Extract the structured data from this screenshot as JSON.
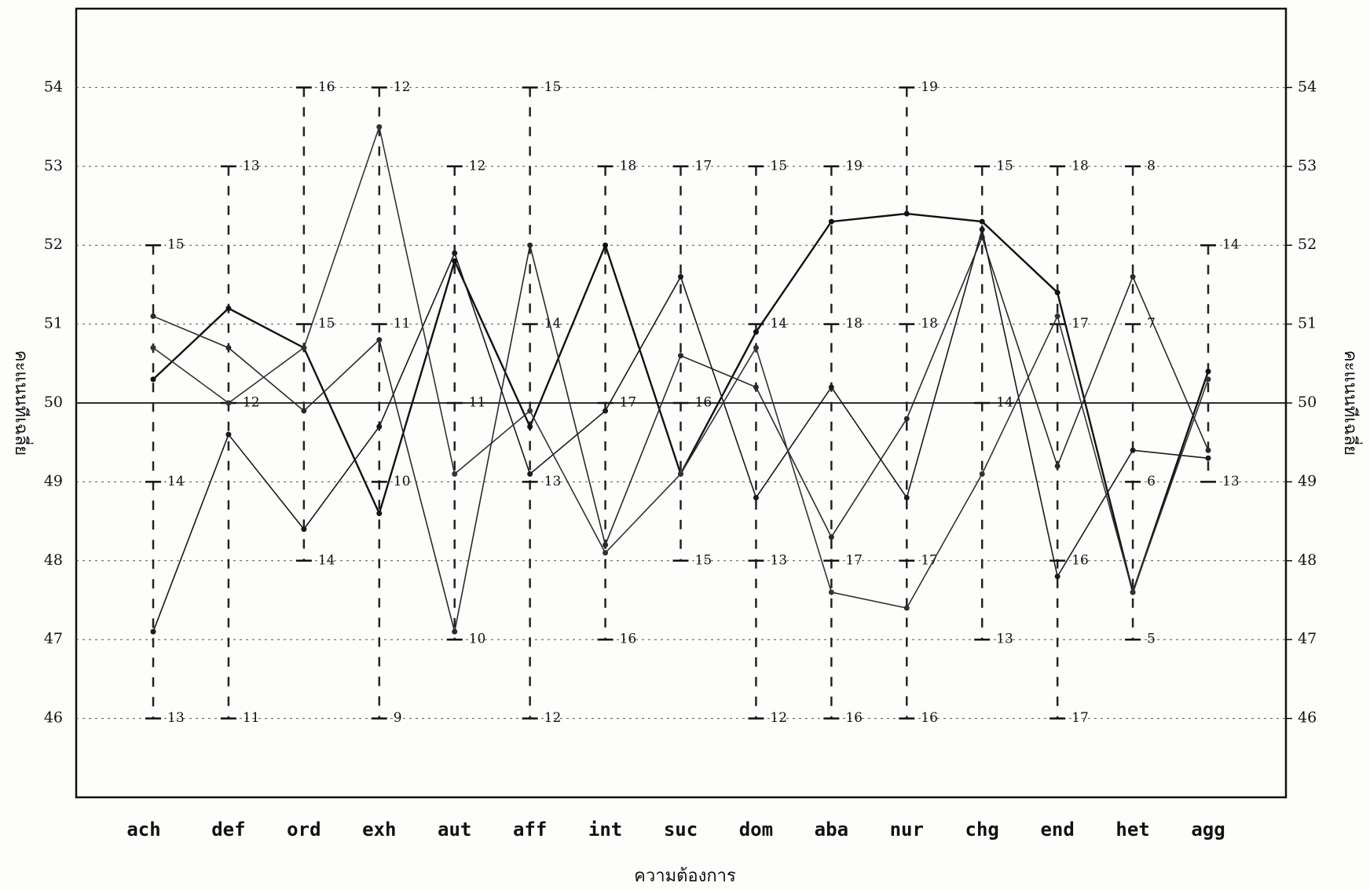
{
  "chart_data": {
    "type": "line",
    "xlabel": "ความต้องการ",
    "ylabel": "คะแนนทีเฉลี่ย",
    "y2label": "คะแนนทีเฉลี่ย",
    "categories": [
      "ach",
      "def",
      "ord",
      "exh",
      "aut",
      "aff",
      "int",
      "suc",
      "dom",
      "aba",
      "nur",
      "chg",
      "end",
      "het",
      "agg"
    ],
    "series": [
      {
        "color": "#111111",
        "values": [
          50.3,
          51.2,
          50.7,
          48.6,
          51.8,
          49.7,
          52.0,
          49.1,
          50.9,
          52.3,
          52.4,
          52.3,
          51.4,
          47.6,
          50.4
        ]
      },
      {
        "color": "#2a2a2a",
        "values": [
          51.1,
          50.7,
          49.9,
          50.8,
          47.1,
          52.0,
          48.2,
          50.6,
          50.2,
          48.3,
          49.8,
          52.1,
          49.2,
          51.6,
          49.4
        ]
      },
      {
        "color": "#1a1a1a",
        "values": [
          47.1,
          49.6,
          48.4,
          49.7,
          51.9,
          49.1,
          49.9,
          51.6,
          48.8,
          50.2,
          48.8,
          52.2,
          47.8,
          49.4,
          49.3
        ]
      },
      {
        "color": "#333333",
        "values": [
          50.7,
          50.0,
          50.7,
          53.5,
          49.1,
          49.9,
          48.1,
          49.1,
          50.7,
          47.6,
          47.4,
          49.1,
          51.1,
          47.6,
          50.3
        ]
      }
    ],
    "ylim": [
      45,
      55
    ],
    "yticks": [
      46,
      47,
      48,
      49,
      50,
      51,
      52,
      53,
      54
    ],
    "y2lim": [
      45,
      55
    ],
    "y2ticks": [
      46,
      47,
      48,
      49,
      50,
      51,
      52,
      53,
      54
    ],
    "reference_line": 50,
    "grid": true,
    "annotations": [
      {
        "x": "ach",
        "y": 52,
        "text": "15"
      },
      {
        "x": "ach",
        "y": 49,
        "text": "14"
      },
      {
        "x": "ach",
        "y": 46,
        "text": "13"
      },
      {
        "x": "def",
        "y": 53,
        "text": "13"
      },
      {
        "x": "def",
        "y": 50,
        "text": "12"
      },
      {
        "x": "def",
        "y": 46,
        "text": "11"
      },
      {
        "x": "ord",
        "y": 54,
        "text": "16"
      },
      {
        "x": "ord",
        "y": 51,
        "text": "15"
      },
      {
        "x": "ord",
        "y": 48,
        "text": "14"
      },
      {
        "x": "exh",
        "y": 54,
        "text": "12"
      },
      {
        "x": "exh",
        "y": 51,
        "text": "11"
      },
      {
        "x": "exh",
        "y": 49,
        "text": "10"
      },
      {
        "x": "exh",
        "y": 46,
        "text": "9"
      },
      {
        "x": "aut",
        "y": 53,
        "text": "12"
      },
      {
        "x": "aut",
        "y": 50,
        "text": "11"
      },
      {
        "x": "aut",
        "y": 47,
        "text": "10"
      },
      {
        "x": "aff",
        "y": 54,
        "text": "15"
      },
      {
        "x": "aff",
        "y": 51,
        "text": "14"
      },
      {
        "x": "aff",
        "y": 49,
        "text": "13"
      },
      {
        "x": "aff",
        "y": 46,
        "text": "12"
      },
      {
        "x": "int",
        "y": 53,
        "text": "18"
      },
      {
        "x": "int",
        "y": 50,
        "text": "17"
      },
      {
        "x": "int",
        "y": 47,
        "text": "16"
      },
      {
        "x": "suc",
        "y": 53,
        "text": "17"
      },
      {
        "x": "suc",
        "y": 50,
        "text": "16"
      },
      {
        "x": "suc",
        "y": 48,
        "text": "15"
      },
      {
        "x": "dom",
        "y": 53,
        "text": "15"
      },
      {
        "x": "dom",
        "y": 51,
        "text": "14"
      },
      {
        "x": "dom",
        "y": 48,
        "text": "13"
      },
      {
        "x": "dom",
        "y": 46,
        "text": "12"
      },
      {
        "x": "aba",
        "y": 53,
        "text": "19"
      },
      {
        "x": "aba",
        "y": 51,
        "text": "18"
      },
      {
        "x": "aba",
        "y": 48,
        "text": "17"
      },
      {
        "x": "aba",
        "y": 46,
        "text": "16"
      },
      {
        "x": "nur",
        "y": 54,
        "text": "19"
      },
      {
        "x": "nur",
        "y": 51,
        "text": "18"
      },
      {
        "x": "nur",
        "y": 48,
        "text": "17"
      },
      {
        "x": "nur",
        "y": 46,
        "text": "16"
      },
      {
        "x": "chg",
        "y": 53,
        "text": "15"
      },
      {
        "x": "chg",
        "y": 50,
        "text": "14"
      },
      {
        "x": "chg",
        "y": 47,
        "text": "13"
      },
      {
        "x": "end",
        "y": 53,
        "text": "18"
      },
      {
        "x": "end",
        "y": 51,
        "text": "17"
      },
      {
        "x": "end",
        "y": 48,
        "text": "16"
      },
      {
        "x": "end",
        "y": 46,
        "text": "17"
      },
      {
        "x": "het",
        "y": 53,
        "text": "8"
      },
      {
        "x": "het",
        "y": 51,
        "text": "7"
      },
      {
        "x": "het",
        "y": 49,
        "text": "6"
      },
      {
        "x": "het",
        "y": 47,
        "text": "5"
      },
      {
        "x": "agg",
        "y": 52,
        "text": "14"
      },
      {
        "x": "agg",
        "y": 49,
        "text": "13"
      }
    ]
  }
}
